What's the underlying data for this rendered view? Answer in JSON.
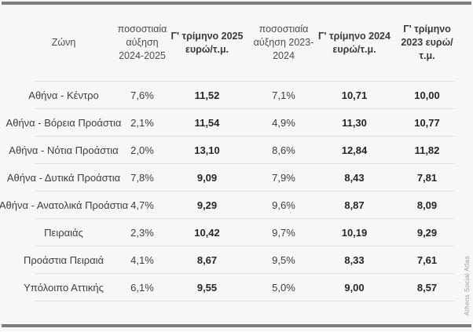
{
  "page": {
    "background_color": "#f7f7f7",
    "frame_bar_color": "#7d7d7d",
    "separator_color": "#dcdcdc",
    "watermark": "Athens Social Atlas"
  },
  "table": {
    "columns": [
      {
        "label": "Ζώνη"
      },
      {
        "label": "ποσοστιαία αύξηση 2024-2025"
      },
      {
        "label": "Γ' τρίμηνο 2025 ευρώ/τ.μ."
      },
      {
        "label": "ποσοστιαία αύξηση 2023-2024"
      },
      {
        "label": "Γ' τρίμηνο 2024 ευρώ/τ.μ."
      },
      {
        "label": "Γ' τρίμηνο 2023 ευρώ/τ.μ."
      }
    ],
    "rows": [
      {
        "zone": "Αθήνα - Κέντρο",
        "pct_2024_2025": "7,6%",
        "q3_2025": "11,52",
        "pct_2023_2024": "7,1%",
        "q3_2024": "10,71",
        "q3_2023": "10,00"
      },
      {
        "zone": "Αθήνα - Βόρεια Προάστια",
        "pct_2024_2025": "2,1%",
        "q3_2025": "11,54",
        "pct_2023_2024": "4,9%",
        "q3_2024": "11,30",
        "q3_2023": "10,77"
      },
      {
        "zone": "Αθήνα - Νότια Προάστια",
        "pct_2024_2025": "2,0%",
        "q3_2025": "13,10",
        "pct_2023_2024": "8,6%",
        "q3_2024": "12,84",
        "q3_2023": "11,82"
      },
      {
        "zone": "Αθήνα - Δυτικά Προάστια",
        "pct_2024_2025": "7,8%",
        "q3_2025": "9,09",
        "pct_2023_2024": "7,9%",
        "q3_2024": "8,43",
        "q3_2023": "7,81"
      },
      {
        "zone": "Αθήνα - Ανατολικά Προάστια",
        "pct_2024_2025": "4,7%",
        "q3_2025": "9,29",
        "pct_2023_2024": "9,6%",
        "q3_2024": "8,87",
        "q3_2023": "8,09"
      },
      {
        "zone": "Πειραιάς",
        "pct_2024_2025": "2,3%",
        "q3_2025": "10,42",
        "pct_2023_2024": "9,7%",
        "q3_2024": "10,19",
        "q3_2023": "9,29"
      },
      {
        "zone": "Προάστια Πειραιά",
        "pct_2024_2025": "4,1%",
        "q3_2025": "8,67",
        "pct_2023_2024": "9,5%",
        "q3_2024": "8,33",
        "q3_2023": "7,61"
      },
      {
        "zone": "Υπόλοιπο Αττικής",
        "pct_2024_2025": "6,1%",
        "q3_2025": "9,55",
        "pct_2023_2024": "5,0%",
        "q3_2024": "9,00",
        "q3_2023": "8,57"
      }
    ]
  },
  "chart_data": {
    "type": "table",
    "title": "",
    "columns": [
      "Ζώνη",
      "ποσοστιαία αύξηση 2024-2025",
      "Γ' τρίμηνο 2025 ευρώ/τ.μ.",
      "ποσοστιαία αύξηση 2023-2024",
      "Γ' τρίμηνο 2024 ευρώ/τ.μ.",
      "Γ' τρίμηνο 2023 ευρώ/τ.μ."
    ],
    "rows": [
      [
        "Αθήνα - Κέντρο",
        7.6,
        11.52,
        7.1,
        10.71,
        10.0
      ],
      [
        "Αθήνα - Βόρεια Προάστια",
        2.1,
        11.54,
        4.9,
        11.3,
        10.77
      ],
      [
        "Αθήνα - Νότια Προάστια",
        2.0,
        13.1,
        8.6,
        12.84,
        11.82
      ],
      [
        "Αθήνα - Δυτικά Προάστια",
        7.8,
        9.09,
        7.9,
        8.43,
        7.81
      ],
      [
        "Αθήνα - Ανατολικά Προάστια",
        4.7,
        9.29,
        9.6,
        8.87,
        8.09
      ],
      [
        "Πειραιάς",
        2.3,
        10.42,
        9.7,
        10.19,
        9.29
      ],
      [
        "Προάστια Πειραιά",
        4.1,
        8.67,
        9.5,
        8.33,
        7.61
      ],
      [
        "Υπόλοιπο Αττικής",
        6.1,
        9.55,
        5.0,
        9.0,
        8.57
      ]
    ],
    "units": {
      "percent_columns": "%",
      "price_columns": "ευρώ/τ.μ."
    },
    "source_watermark": "Athens Social Atlas"
  }
}
